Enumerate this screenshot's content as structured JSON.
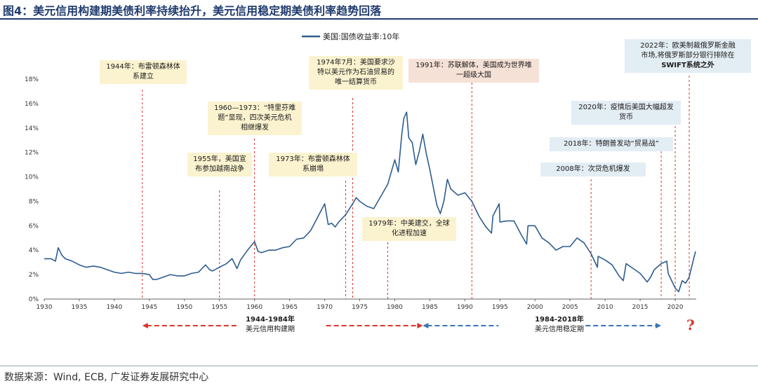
{
  "title": "图4：美元信用构建期美债利率持续抬升，美元信用稳定期美债利率趋势回落",
  "source": "数据来源：Wind, ECB, 广发证券发展研究中心",
  "chart_data": {
    "type": "line",
    "title": "美国:国债收益率:10年",
    "xlabel": "",
    "ylabel": "",
    "xlim": [
      1930,
      2023
    ],
    "ylim": [
      0,
      18
    ],
    "x_ticks": [
      "1930",
      "1935",
      "1940",
      "1945",
      "1950",
      "1955",
      "1960",
      "1965",
      "1970",
      "1975",
      "1980",
      "1985",
      "1990",
      "1995",
      "2000",
      "2005",
      "2010",
      "2015",
      "2020"
    ],
    "y_ticks": [
      "0%",
      "2%",
      "4%",
      "6%",
      "8%",
      "10%",
      "12%",
      "14%",
      "16%",
      "18%"
    ],
    "legend": "top-center",
    "color": "#2e5d8f",
    "series": [
      {
        "name": "美国:国债收益率:10年",
        "x": [
          1930,
          1931,
          1931.6,
          1932,
          1932.5,
          1933,
          1934,
          1935,
          1936,
          1937,
          1938,
          1939,
          1940,
          1941,
          1942,
          1943,
          1944,
          1945,
          1945.5,
          1946,
          1947,
          1948,
          1949,
          1950,
          1951,
          1952,
          1953,
          1953.6,
          1954,
          1955,
          1956,
          1956.8,
          1957.5,
          1958,
          1959,
          1960,
          1960.5,
          1961,
          1962,
          1963,
          1964,
          1965,
          1966,
          1967,
          1968,
          1969,
          1970,
          1970.5,
          1971,
          1971.5,
          1972,
          1973,
          1974,
          1974.5,
          1975,
          1976,
          1977,
          1978,
          1979,
          1980,
          1980.5,
          1981,
          1981.3,
          1981.7,
          1982,
          1982.5,
          1983,
          1983.5,
          1984,
          1984.5,
          1985,
          1986,
          1986.5,
          1987,
          1987.5,
          1988,
          1989,
          1990,
          1991,
          1992,
          1993,
          1993.8,
          1994,
          1994.9,
          1995,
          1996,
          1997,
          1998,
          1998.8,
          1999,
          2000,
          2001,
          2002,
          2003,
          2004,
          2005,
          2006,
          2007,
          2008,
          2008.9,
          2009,
          2010,
          2011,
          2012,
          2012.6,
          2013,
          2014,
          2015,
          2016,
          2016.5,
          2017,
          2018,
          2018.8,
          2019,
          2020,
          2020.5,
          2021,
          2021.5,
          2022,
          2022.5,
          2022.9
        ],
        "y": [
          3.3,
          3.3,
          3.1,
          4.2,
          3.6,
          3.3,
          3.1,
          2.8,
          2.6,
          2.7,
          2.6,
          2.4,
          2.2,
          2.1,
          2.2,
          2.1,
          2.1,
          2.0,
          1.6,
          1.6,
          1.8,
          2.0,
          1.9,
          1.9,
          2.1,
          2.2,
          2.8,
          2.4,
          2.3,
          2.6,
          2.9,
          3.3,
          2.5,
          3.2,
          4.0,
          4.7,
          3.9,
          3.8,
          4.0,
          4.0,
          4.2,
          4.3,
          4.9,
          5.0,
          5.6,
          6.7,
          7.8,
          6.1,
          6.2,
          5.9,
          6.3,
          6.9,
          7.8,
          8.3,
          8.0,
          7.6,
          7.4,
          8.4,
          9.4,
          11.4,
          10.4,
          13.5,
          14.8,
          15.3,
          13.2,
          12.8,
          11.0,
          12.1,
          13.5,
          11.9,
          10.6,
          7.7,
          7.0,
          8.0,
          9.8,
          9.0,
          8.5,
          8.7,
          8.0,
          6.8,
          5.9,
          5.4,
          6.8,
          7.8,
          6.3,
          6.4,
          6.4,
          5.3,
          4.5,
          6.0,
          6.0,
          5.0,
          4.6,
          4.0,
          4.3,
          4.3,
          5.0,
          4.6,
          3.7,
          2.6,
          3.5,
          3.2,
          2.8,
          1.9,
          1.5,
          2.9,
          2.5,
          2.1,
          1.4,
          1.8,
          2.4,
          2.9,
          3.1,
          2.1,
          0.9,
          0.6,
          1.5,
          1.3,
          1.8,
          3.0,
          3.9
        ]
      }
    ],
    "annotations": [
      {
        "year": 1944,
        "text": "1944年：布雷顿森林体系建立"
      },
      {
        "year": 1955,
        "text": "1955年，美国宣布参加越南战争"
      },
      {
        "year": 1960,
        "text": "1960—1973：“特里芬难题”显现，四次美元危机相继爆发"
      },
      {
        "year": 1973,
        "text": "1973年：布雷顿森林体系崩塌"
      },
      {
        "year": 1974,
        "text": "1974年7月：美国要求沙特以美元作为石油贸易的唯一结算货币"
      },
      {
        "year": 1979,
        "text": "1979年：中美建交，全球化进程加速"
      },
      {
        "year": 1991,
        "text": "1991年：苏联解体，美国成为世界唯一超级大国"
      },
      {
        "year": 2008,
        "text": "2008年：次贷危机爆发"
      },
      {
        "year": 2018,
        "text": "2018年：特朗普发动“贸易战”"
      },
      {
        "year": 2020,
        "text": "2020年：疫情后美国大幅超发货币"
      },
      {
        "year": 2022,
        "text": "2022年：欧美制裁俄罗斯金融市场,将俄罗斯部分银行排除在SWIFT系统之外"
      }
    ],
    "periods": [
      {
        "label": "1944-1984年\n美元信用构建期",
        "from": 1944,
        "to": 1984,
        "color": "#d8342c"
      },
      {
        "label": "1984-2018年\n美元信用稳定期",
        "from": 1984,
        "to": 2018,
        "color": "#3a72b8"
      }
    ],
    "question_mark": "?"
  },
  "ann": {
    "a1944_line1": "1944年：布雷顿森林体",
    "a1944_line2": "系建立",
    "a1955_line1": "1955年，美国宣",
    "a1955_line2": "布参加越南战争",
    "a1960_line1": "1960—1973：“特里芬难",
    "a1960_line2": "题”显现，四次美元危机",
    "a1960_line3": "相继爆发",
    "a1973_line1": "1973年：布雷顿森林体",
    "a1973_line2": "系崩塌",
    "a1974_line1": "1974年7月：美国要求沙",
    "a1974_line2": "特以美元作为石油贸易的",
    "a1974_line3": "唯一结算货币",
    "a1979_line1": "1979年：中美建交，全球",
    "a1979_line2": "化进程加速",
    "a1991_line1": "1991年：苏联解体，美国成为世界唯",
    "a1991_line2": "一超级大国",
    "a2008": "2008年：次贷危机爆发",
    "a2018": "2018年：特朗普发动“贸易战”",
    "a2020_line1": "2020年：疫情后美国大幅超发",
    "a2020_line2": "货币",
    "a2022_line1": "2022年：欧美制裁俄罗斯金融",
    "a2022_line2": "市场,将俄罗斯部分银行排除在",
    "a2022_line3": "SWIFT系统之外",
    "p1_line1": "1944-1984年",
    "p1_line2": "美元信用构建期",
    "p2_line1": "1984-2018年",
    "p2_line2": "美元信用稳定期"
  }
}
